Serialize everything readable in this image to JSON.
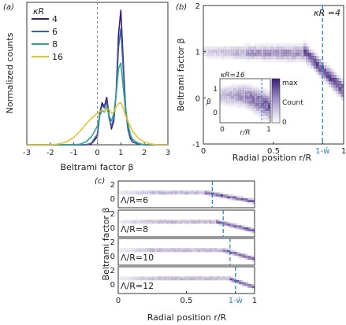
{
  "chart_data": [
    {
      "panel": "(a)",
      "type": "line",
      "xlabel": "Beltrami factor β",
      "ylabel": "Normalized counts",
      "xlim": [
        -3,
        3
      ],
      "xticks": [
        "-3",
        "-2",
        "-1",
        "0",
        "1",
        "2",
        "3"
      ],
      "legend_title": "κR",
      "legend_placement": "top-left",
      "x": [
        -3,
        -2.75,
        -2.5,
        -2.25,
        -2,
        -1.75,
        -1.5,
        -1.25,
        -1,
        -0.75,
        -0.5,
        -0.25,
        0,
        0.1,
        0.2,
        0.3,
        0.4,
        0.5,
        0.6,
        0.7,
        0.8,
        0.9,
        1,
        1.1,
        1.2,
        1.3,
        1.4,
        1.5,
        1.75,
        2,
        2.25,
        2.5,
        2.75,
        3
      ],
      "series": [
        {
          "name": "4",
          "color": "#3b1b7a",
          "values": [
            0,
            0,
            0,
            0,
            0,
            0,
            0,
            0,
            0,
            0,
            0,
            0.02,
            0.15,
            0.6,
            0.8,
            0.72,
            0.9,
            0.55,
            0.3,
            0.45,
            1.0,
            2.1,
            2.55,
            1.6,
            0.7,
            0.3,
            0.12,
            0.05,
            0.01,
            0,
            0,
            0,
            0,
            0
          ]
        },
        {
          "name": "6",
          "color": "#3a5fa8",
          "values": [
            0,
            0,
            0,
            0,
            0,
            0,
            0,
            0,
            0,
            0,
            0,
            0.03,
            0.2,
            0.55,
            0.75,
            0.7,
            0.82,
            0.5,
            0.35,
            0.5,
            0.95,
            1.85,
            2.2,
            1.45,
            0.7,
            0.32,
            0.14,
            0.06,
            0.01,
            0,
            0,
            0,
            0,
            0
          ]
        },
        {
          "name": "8",
          "color": "#2ea58c",
          "values": [
            0,
            0,
            0,
            0,
            0,
            0,
            0,
            0,
            0,
            0.01,
            0.05,
            0.15,
            0.35,
            0.55,
            0.65,
            0.62,
            0.72,
            0.55,
            0.45,
            0.6,
            0.95,
            1.45,
            1.55,
            1.1,
            0.65,
            0.4,
            0.2,
            0.1,
            0.03,
            0,
            0,
            0,
            0,
            0
          ]
        },
        {
          "name": "16",
          "color": "#e6c22e",
          "values": [
            0,
            0,
            0,
            0,
            0,
            0.01,
            0.03,
            0.07,
            0.14,
            0.25,
            0.38,
            0.5,
            0.6,
            0.63,
            0.66,
            0.64,
            0.68,
            0.67,
            0.6,
            0.62,
            0.72,
            0.78,
            0.8,
            0.7,
            0.55,
            0.45,
            0.35,
            0.26,
            0.12,
            0.05,
            0.02,
            0,
            0,
            0
          ]
        }
      ]
    },
    {
      "panel": "(b)",
      "type": "heatmap",
      "annotation": "κR =4",
      "xlabel": "Radial position r/R",
      "ylabel": "Beltrami factor β",
      "xlim": [
        0,
        1
      ],
      "ylim": [
        -1,
        2
      ],
      "xticks": [
        "0",
        "0.5",
        "1-w̄",
        "1"
      ],
      "yticks": [
        "2",
        "1",
        "0",
        "-1"
      ],
      "dashed_line_x": 0.85,
      "colorbar": {
        "label": "Count",
        "max_label": "max",
        "min_label": "0"
      },
      "inset": {
        "annotation": "κR=16",
        "xlabel": "r/R",
        "ylabel": "β",
        "xticks": [
          "0",
          "1"
        ],
        "yticks": [
          "1",
          "0"
        ],
        "dashed_line_x": 0.83
      }
    },
    {
      "panel": "(c)",
      "type": "heatmap",
      "xlabel": "Radial position r/R",
      "ylabel": "Beltrami factor β",
      "xlim": [
        0,
        1
      ],
      "xticks": [
        "0",
        "0.5",
        "1-w̄",
        "1"
      ],
      "yticks": [
        "2",
        "0"
      ],
      "rows": [
        {
          "label": "Λ/R=6",
          "dashed_line_x": 0.69
        },
        {
          "label": "Λ/R=8",
          "dashed_line_x": 0.77
        },
        {
          "label": "Λ/R=10",
          "dashed_line_x": 0.82
        },
        {
          "label": "Λ/R=12",
          "dashed_line_x": 0.86
        }
      ]
    }
  ]
}
